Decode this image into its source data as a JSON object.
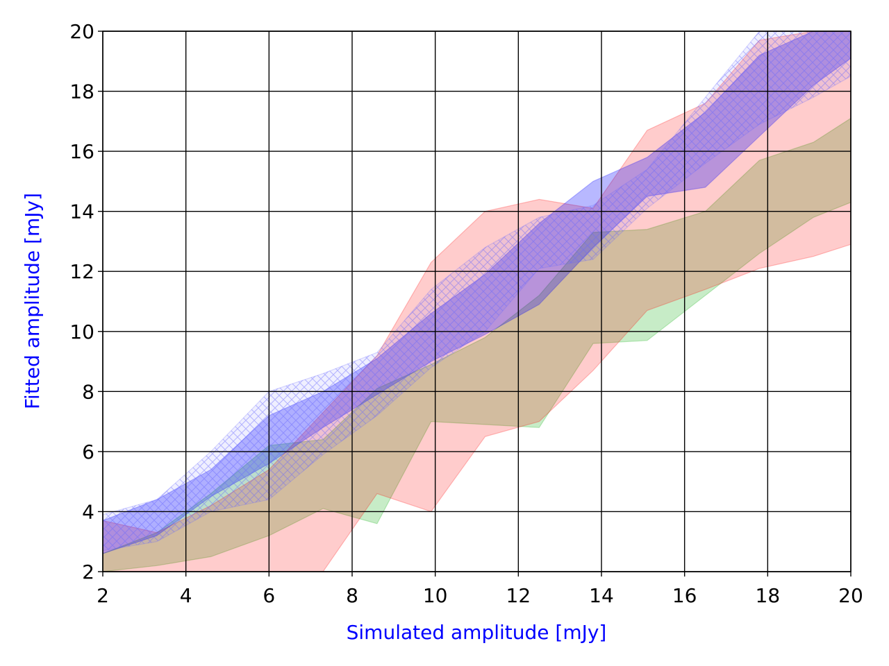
{
  "chart_data": {
    "type": "area",
    "title": "",
    "xlabel": "Simulated amplitude [mJy]",
    "ylabel": "Fitted amplitude [mJy]",
    "label_color": "#0000ff",
    "xlim": [
      2,
      20
    ],
    "ylim": [
      2,
      20
    ],
    "xticks": [
      2,
      4,
      6,
      8,
      10,
      12,
      14,
      16,
      18,
      20
    ],
    "yticks": [
      2,
      4,
      6,
      8,
      10,
      12,
      14,
      16,
      18,
      20
    ],
    "grid": true,
    "x": [
      2.0,
      3.3,
      4.6,
      6.0,
      7.3,
      8.6,
      9.9,
      11.2,
      12.5,
      13.8,
      15.1,
      16.5,
      17.8,
      19.1,
      20.0
    ],
    "series": [
      {
        "color": "#00aa00",
        "fill_opacity": 0.22,
        "hatch": false,
        "lower": [
          2.0,
          2.2,
          2.5,
          3.2,
          4.1,
          3.6,
          7.0,
          6.9,
          6.8,
          9.6,
          9.7,
          11.2,
          12.6,
          13.8,
          14.3
        ],
        "upper": [
          2.6,
          3.3,
          4.6,
          6.2,
          6.4,
          8.1,
          8.9,
          9.8,
          11.2,
          13.3,
          13.4,
          14.0,
          15.7,
          16.3,
          17.1
        ]
      },
      {
        "color": "#ff0000",
        "fill_opacity": 0.2,
        "hatch": false,
        "lower": [
          2.0,
          2.0,
          2.0,
          2.0,
          2.0,
          4.6,
          4.0,
          6.5,
          7.0,
          8.7,
          10.7,
          11.4,
          12.1,
          12.5,
          12.9
        ],
        "upper": [
          3.7,
          3.3,
          4.2,
          5.4,
          7.3,
          9.2,
          12.3,
          14.0,
          14.4,
          14.1,
          16.7,
          17.6,
          19.7,
          20.0,
          20.0
        ]
      },
      {
        "color": "#0000ff",
        "fill_opacity": 0.28,
        "hatch": false,
        "lower": [
          2.6,
          3.2,
          4.5,
          5.6,
          6.8,
          7.9,
          9.0,
          9.9,
          10.9,
          12.8,
          14.5,
          14.8,
          16.5,
          18.2,
          19.1
        ],
        "upper": [
          3.7,
          4.4,
          5.4,
          7.2,
          8.0,
          9.1,
          10.6,
          11.9,
          13.6,
          15.0,
          15.8,
          17.3,
          19.2,
          20.0,
          20.0
        ]
      },
      {
        "color": "#6666ff",
        "fill_opacity": 0.1,
        "hatch": true,
        "lower": [
          2.7,
          3.0,
          4.0,
          4.4,
          5.9,
          7.2,
          8.8,
          10.0,
          12.1,
          12.4,
          14.1,
          15.6,
          16.9,
          17.8,
          18.5
        ],
        "upper": [
          3.9,
          4.4,
          6.0,
          8.0,
          8.6,
          9.3,
          11.4,
          12.8,
          13.8,
          14.2,
          15.4,
          17.8,
          20.0,
          20.0,
          20.0
        ]
      }
    ]
  }
}
